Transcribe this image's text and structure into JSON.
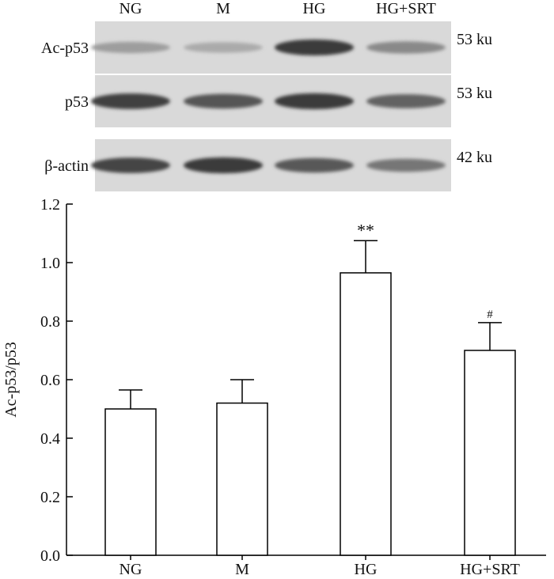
{
  "blot": {
    "lanes": [
      "NG",
      "M",
      "HG",
      "HG+SRT"
    ],
    "rows": [
      {
        "label": "Ac-p53",
        "size": "53 ku",
        "intensity": [
          0.35,
          0.28,
          0.85,
          0.45
        ]
      },
      {
        "label": "p53",
        "size": "53 ku",
        "intensity": [
          0.82,
          0.72,
          0.85,
          0.65
        ]
      },
      {
        "label": "β-actin",
        "size": "42 ku",
        "intensity": [
          0.8,
          0.85,
          0.7,
          0.55
        ]
      }
    ]
  },
  "chart_data": {
    "type": "bar",
    "categories": [
      "NG",
      "M",
      "HG",
      "HG+SRT"
    ],
    "values": [
      0.5,
      0.52,
      0.965,
      0.7
    ],
    "errors": [
      0.065,
      0.08,
      0.11,
      0.095
    ],
    "annotations": [
      "",
      "",
      "**",
      "#"
    ],
    "title": "",
    "xlabel": "",
    "ylabel": "Ac-p53/p53",
    "ylim": [
      0,
      1.2
    ],
    "yticks": [
      "0.0",
      "0.2",
      "0.4",
      "0.6",
      "0.8",
      "1.0",
      "1.2"
    ],
    "grid": false,
    "colors": {
      "bar_fill": "#ffffff",
      "stroke": "#000000"
    }
  }
}
